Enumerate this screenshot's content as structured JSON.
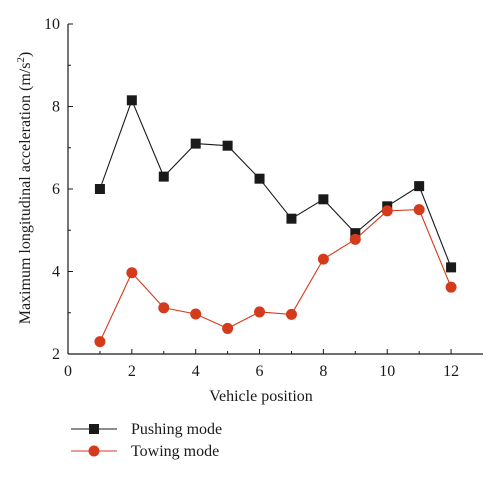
{
  "chart_data": {
    "type": "line",
    "title": "",
    "xlabel": "Vehicle position",
    "ylabel_main": "Maximum longitudinal acceleration (m/s",
    "ylabel_sup": "2",
    "ylabel_close": ")",
    "xlim": [
      0,
      13
    ],
    "ylim": [
      2,
      10
    ],
    "xticks": [
      "0",
      "2",
      "4",
      "6",
      "8",
      "10",
      "12"
    ],
    "yticks": [
      "2",
      "4",
      "6",
      "8",
      "10"
    ],
    "grid": false,
    "legend_position": "bottom-left",
    "x": [
      1,
      2,
      3,
      4,
      5,
      6,
      7,
      8,
      9,
      10,
      11,
      12
    ],
    "series": [
      {
        "name": "Pushing mode",
        "marker": "square",
        "color": "#1a1a1a",
        "values": [
          6.0,
          8.15,
          6.3,
          7.1,
          7.05,
          6.25,
          5.28,
          5.75,
          4.93,
          5.58,
          6.07,
          4.1
        ]
      },
      {
        "name": "Towing mode",
        "marker": "circle",
        "color": "#d43a1c",
        "values": [
          2.3,
          3.97,
          3.12,
          2.97,
          2.62,
          3.02,
          2.96,
          4.3,
          4.78,
          5.47,
          5.5,
          3.62
        ]
      }
    ]
  }
}
